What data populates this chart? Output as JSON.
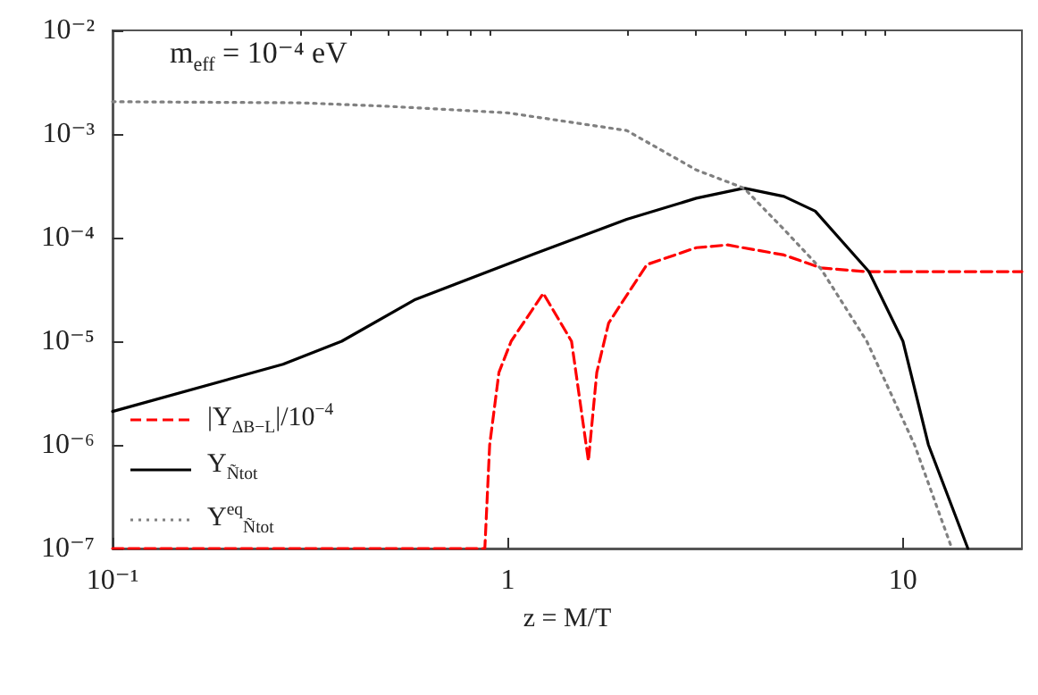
{
  "chart_data": {
    "type": "line",
    "xlabel": "z = M/T",
    "annotations": [
      "m$_{eff}$ = 10⁻⁴ eV"
    ],
    "log": "xy",
    "xlim": [
      0.1,
      20
    ],
    "xticks": [
      {
        "value": 0.1,
        "label": "10⁻¹"
      },
      {
        "value": 0.2,
        "label": null
      },
      {
        "value": 0.3,
        "label": null
      },
      {
        "value": 0.4,
        "label": null
      },
      {
        "value": 0.5,
        "label": null
      },
      {
        "value": 0.6,
        "label": null
      },
      {
        "value": 0.7,
        "label": null
      },
      {
        "value": 0.8,
        "label": null
      },
      {
        "value": 0.9,
        "label": null
      },
      1,
      {
        "value": 2,
        "label": null
      },
      {
        "value": 3,
        "label": null
      },
      {
        "value": 4,
        "label": null
      },
      {
        "value": 5,
        "label": null
      },
      {
        "value": 6,
        "label": null
      },
      {
        "value": 7,
        "label": null
      },
      {
        "value": 8,
        "label": null
      },
      {
        "value": 9,
        "label": null
      },
      10
    ],
    "ylim": [
      1e-07,
      0.01
    ],
    "yticks": [
      {
        "value": 1e-07,
        "label": "10⁻⁷"
      },
      {
        "value": 1e-06,
        "label": "10⁻⁶"
      },
      {
        "value": 1e-05,
        "label": "10⁻⁵"
      },
      {
        "value": 0.0001,
        "label": "10⁻⁴"
      },
      {
        "value": 0.001,
        "label": "10⁻³"
      },
      {
        "value": 0.01,
        "label": "10⁻²"
      }
    ],
    "grid": false,
    "legend": "bottom left",
    "marker": "none",
    "series": [
      {
        "name": "|Y$_{ΔB−L}$|/10$^{−4}$",
        "color": "#ff0000",
        "line_style": "dashed",
        "x": [
          0.1,
          0.875,
          0.9,
          0.95,
          1.02,
          1.23,
          1.45,
          1.6,
          1.68,
          1.8,
          2.25,
          3,
          3.6,
          5,
          6.2,
          8,
          20
        ],
        "values": [
          1e-07,
          1e-07,
          1e-06,
          5e-06,
          1e-05,
          2.9e-05,
          1e-05,
          7e-07,
          5e-06,
          1.5e-05,
          5.5e-05,
          8e-05,
          8.5e-05,
          6.8e-05,
          5.1e-05,
          4.7e-05,
          4.7e-05
        ]
      },
      {
        "name": "Y$_{Ñtot}$",
        "color": "#000000",
        "line_style": "solid",
        "x": [
          0.1,
          0.27,
          0.38,
          0.58,
          1.17,
          2,
          3,
          3.96,
          5,
          6,
          8.2,
          10,
          11.6,
          14.6
        ],
        "values": [
          2.1e-06,
          6e-06,
          1e-05,
          2.5e-05,
          7e-05,
          0.00015,
          0.00024,
          0.0003,
          0.00025,
          0.00018,
          4.7e-05,
          1e-05,
          1e-06,
          1e-07
        ]
      },
      {
        "name": "Y$^{eq}$$_{Ñtot}$",
        "color": "#808080",
        "line_style": "dotted",
        "x": [
          0.1,
          0.3,
          0.5,
          1,
          2,
          3,
          3.96,
          5,
          6.2,
          8.1,
          10.7,
          13.3
        ],
        "values": [
          0.00205,
          0.002,
          0.00185,
          0.0016,
          0.00108,
          0.00045,
          0.0003,
          0.00012,
          5e-05,
          1e-05,
          1e-06,
          1e-07
        ]
      }
    ]
  }
}
